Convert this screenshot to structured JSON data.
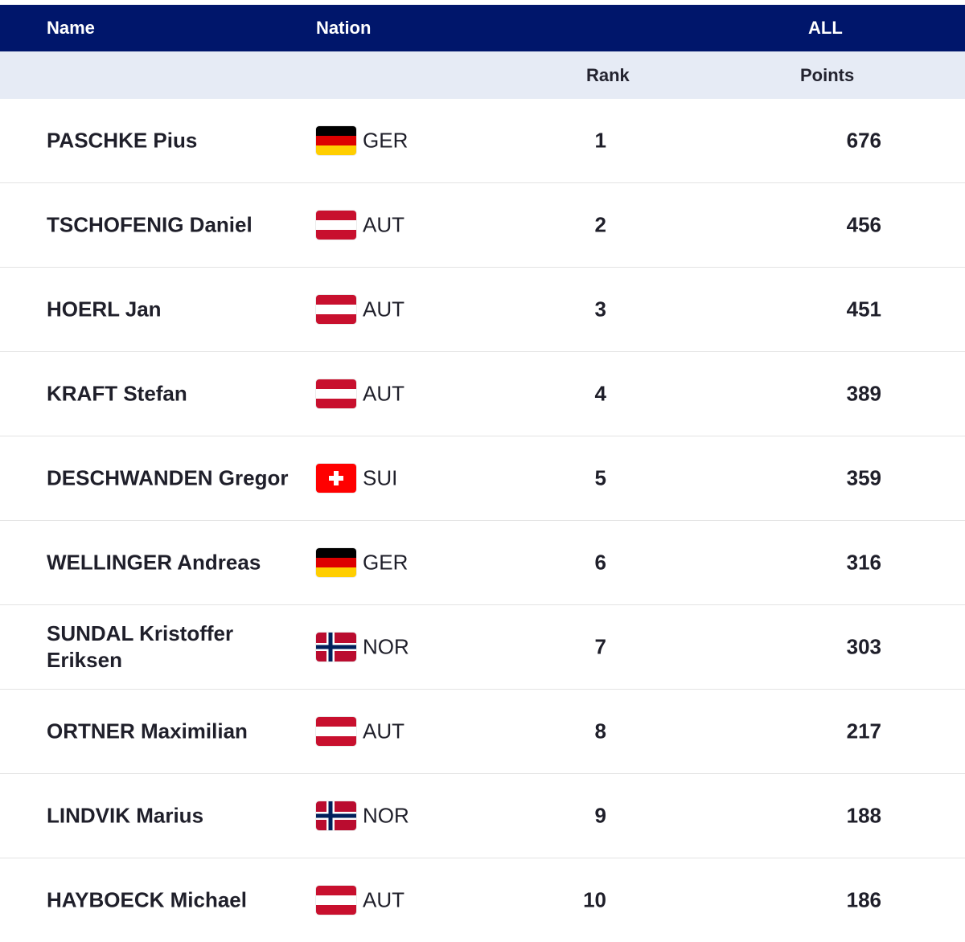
{
  "header": {
    "name": "Name",
    "nation": "Nation",
    "group": "ALL",
    "rank": "Rank",
    "points": "Points"
  },
  "rows": [
    {
      "name": "PASCHKE Pius",
      "flag": "GER",
      "nation": "GER",
      "rank": "1",
      "points": "676"
    },
    {
      "name": "TSCHOFENIG Daniel",
      "flag": "AUT",
      "nation": "AUT",
      "rank": "2",
      "points": "456"
    },
    {
      "name": "HOERL Jan",
      "flag": "AUT",
      "nation": "AUT",
      "rank": "3",
      "points": "451"
    },
    {
      "name": "KRAFT Stefan",
      "flag": "AUT",
      "nation": "AUT",
      "rank": "4",
      "points": "389"
    },
    {
      "name": "DESCHWANDEN Gregor",
      "flag": "SUI",
      "nation": "SUI",
      "rank": "5",
      "points": "359"
    },
    {
      "name": "WELLINGER Andreas",
      "flag": "GER",
      "nation": "GER",
      "rank": "6",
      "points": "316"
    },
    {
      "name": "SUNDAL Kristoffer Eriksen",
      "flag": "NOR",
      "nation": "NOR",
      "rank": "7",
      "points": "303"
    },
    {
      "name": "ORTNER Maximilian",
      "flag": "AUT",
      "nation": "AUT",
      "rank": "8",
      "points": "217"
    },
    {
      "name": "LINDVIK Marius",
      "flag": "NOR",
      "nation": "NOR",
      "rank": "9",
      "points": "188"
    },
    {
      "name": "HAYBOECK Michael",
      "flag": "AUT",
      "nation": "AUT",
      "rank": "10",
      "points": "186"
    }
  ],
  "colors": {
    "header_bg": "#00166b",
    "subheader_bg": "#e6ebf5"
  }
}
